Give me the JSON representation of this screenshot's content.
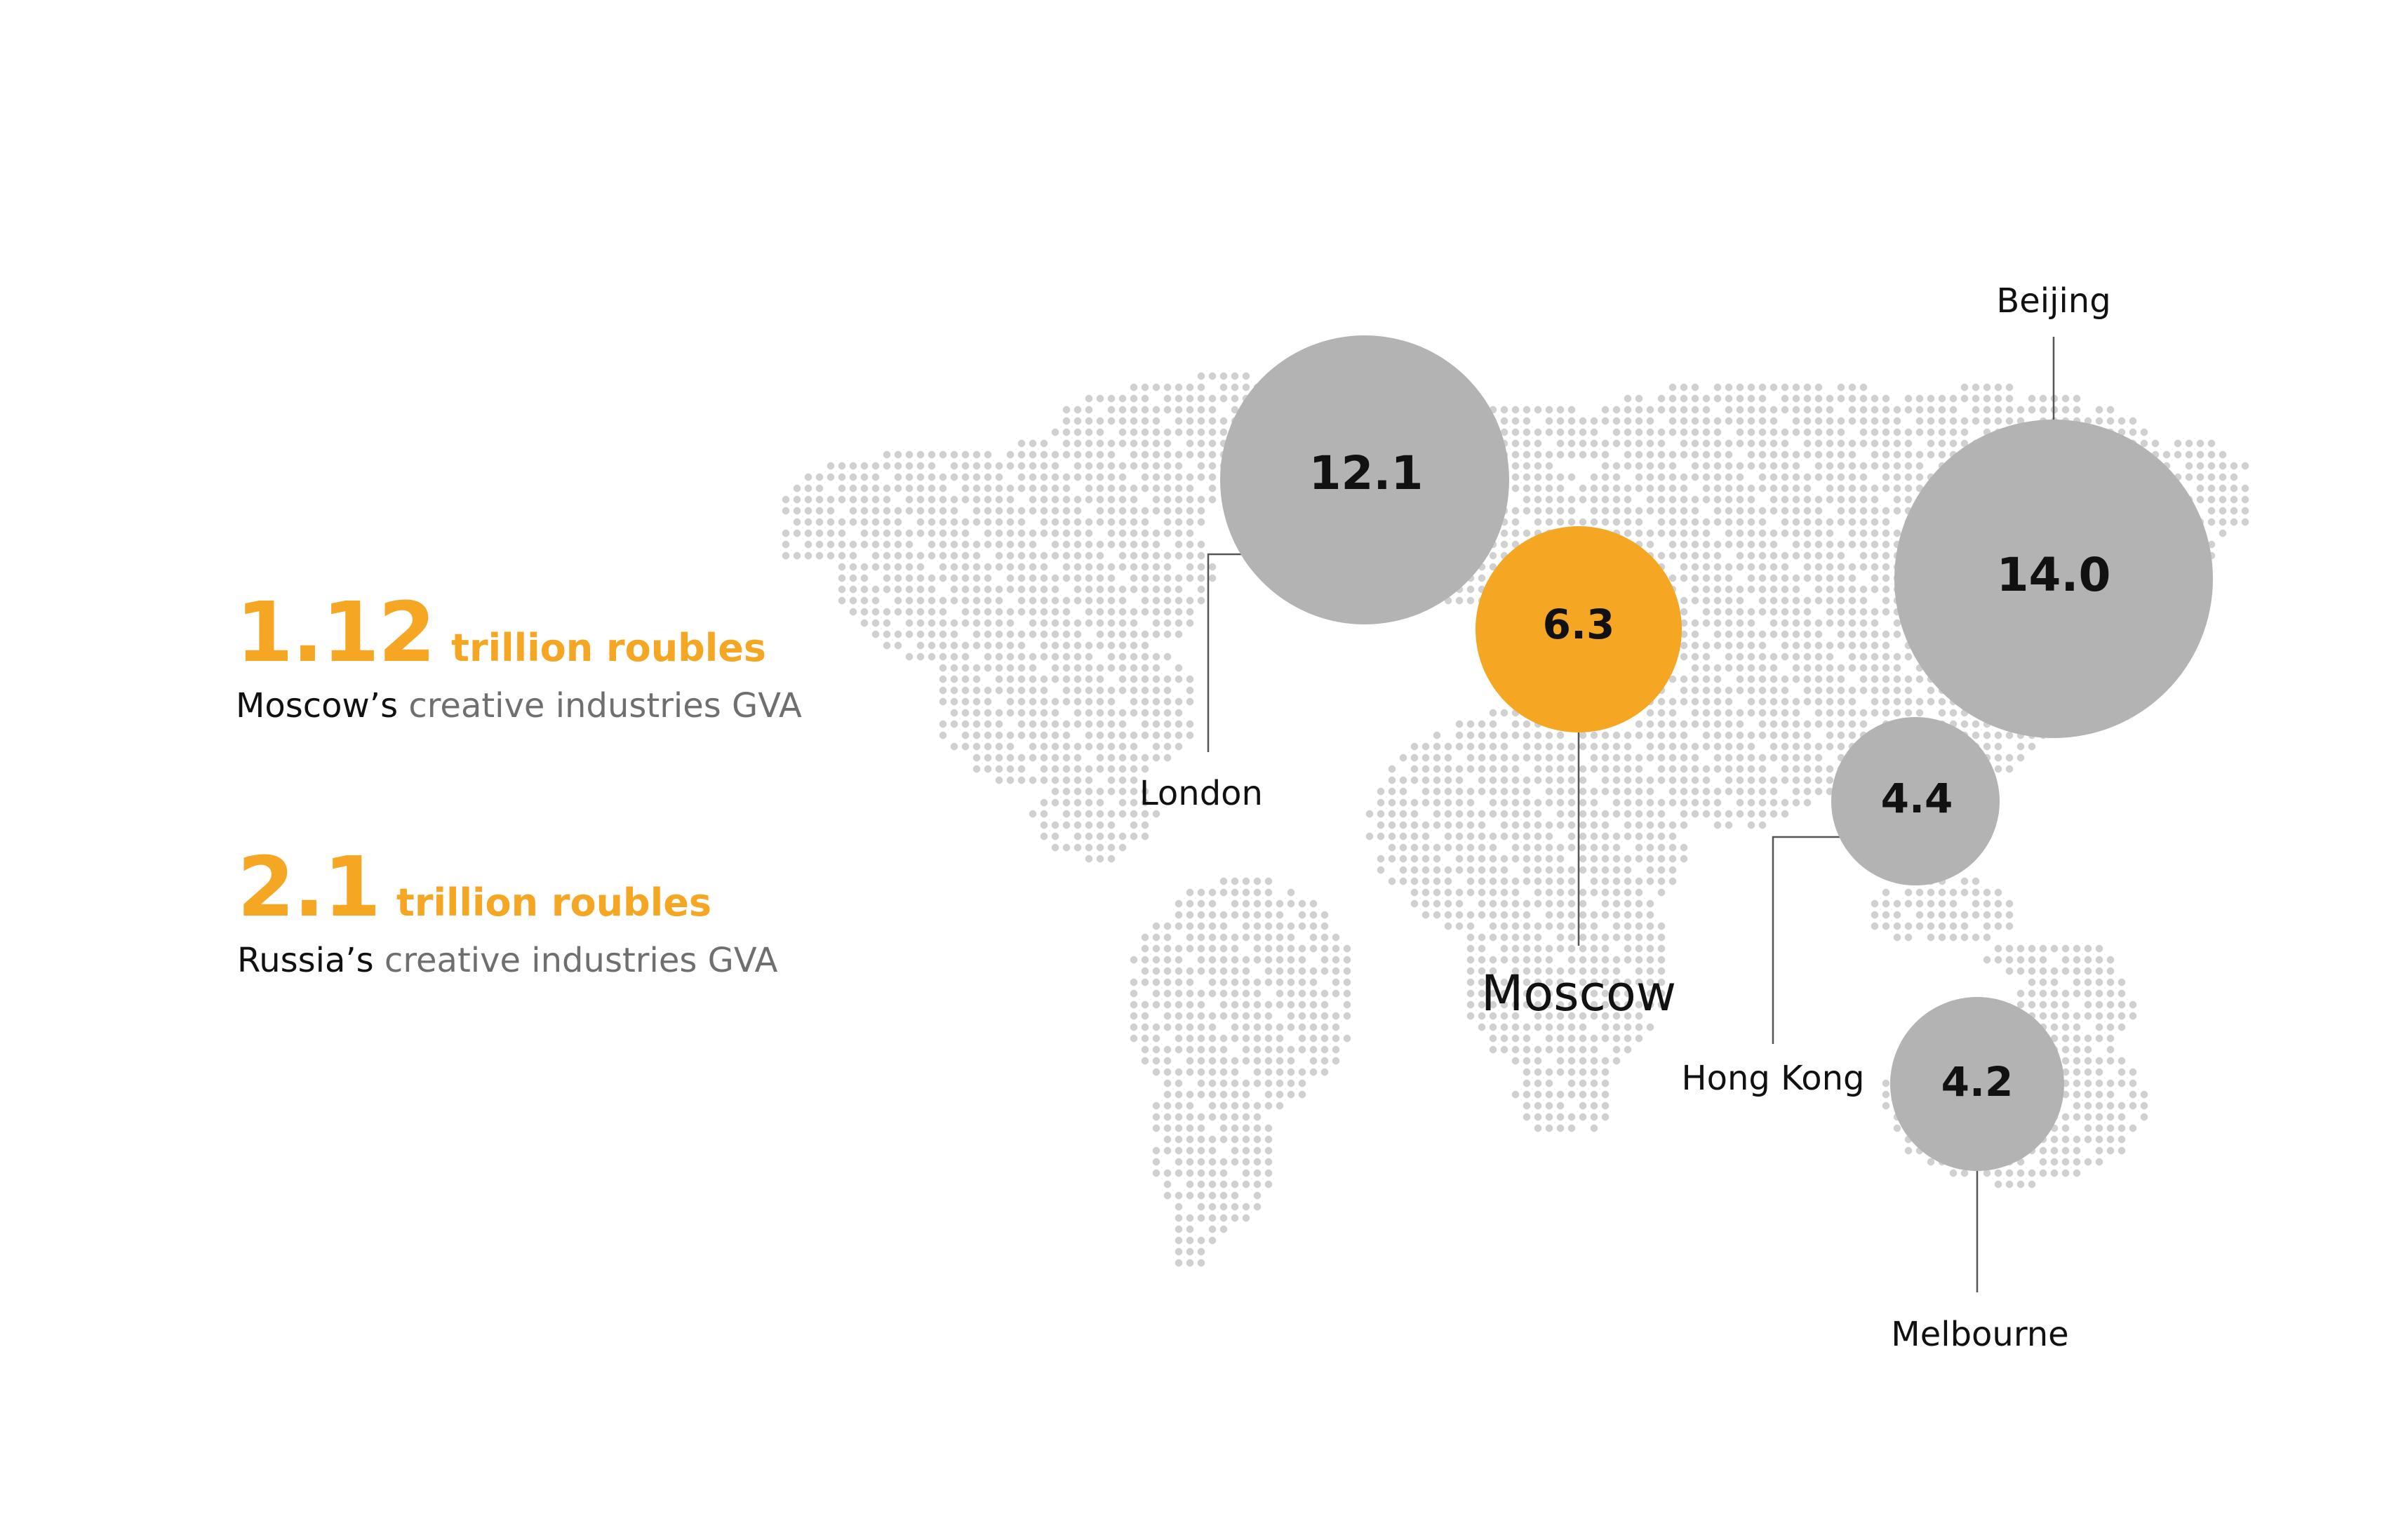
{
  "stats": [
    {
      "value": "1.12",
      "unit": "trillion roubles",
      "subject": "Moscow’s",
      "description": "creative industries GVA"
    },
    {
      "value": "2.1",
      "unit": "trillion roubles",
      "subject": "Russia’s",
      "description": "creative industries GVA"
    }
  ],
  "cities": [
    {
      "name": "London",
      "value": "12.1",
      "highlight": false
    },
    {
      "name": "Moscow",
      "value": "6.3",
      "highlight": true
    },
    {
      "name": "Beijing",
      "value": "14.0",
      "highlight": false
    },
    {
      "name": "Hong Kong",
      "value": "4.4",
      "highlight": false
    },
    {
      "name": "Melbourne",
      "value": "4.2",
      "highlight": false
    }
  ],
  "colors": {
    "accent": "#f5a623",
    "bubble": "#b3b3b3",
    "map_dots": "#d0d0d0",
    "leader": "#555555"
  }
}
